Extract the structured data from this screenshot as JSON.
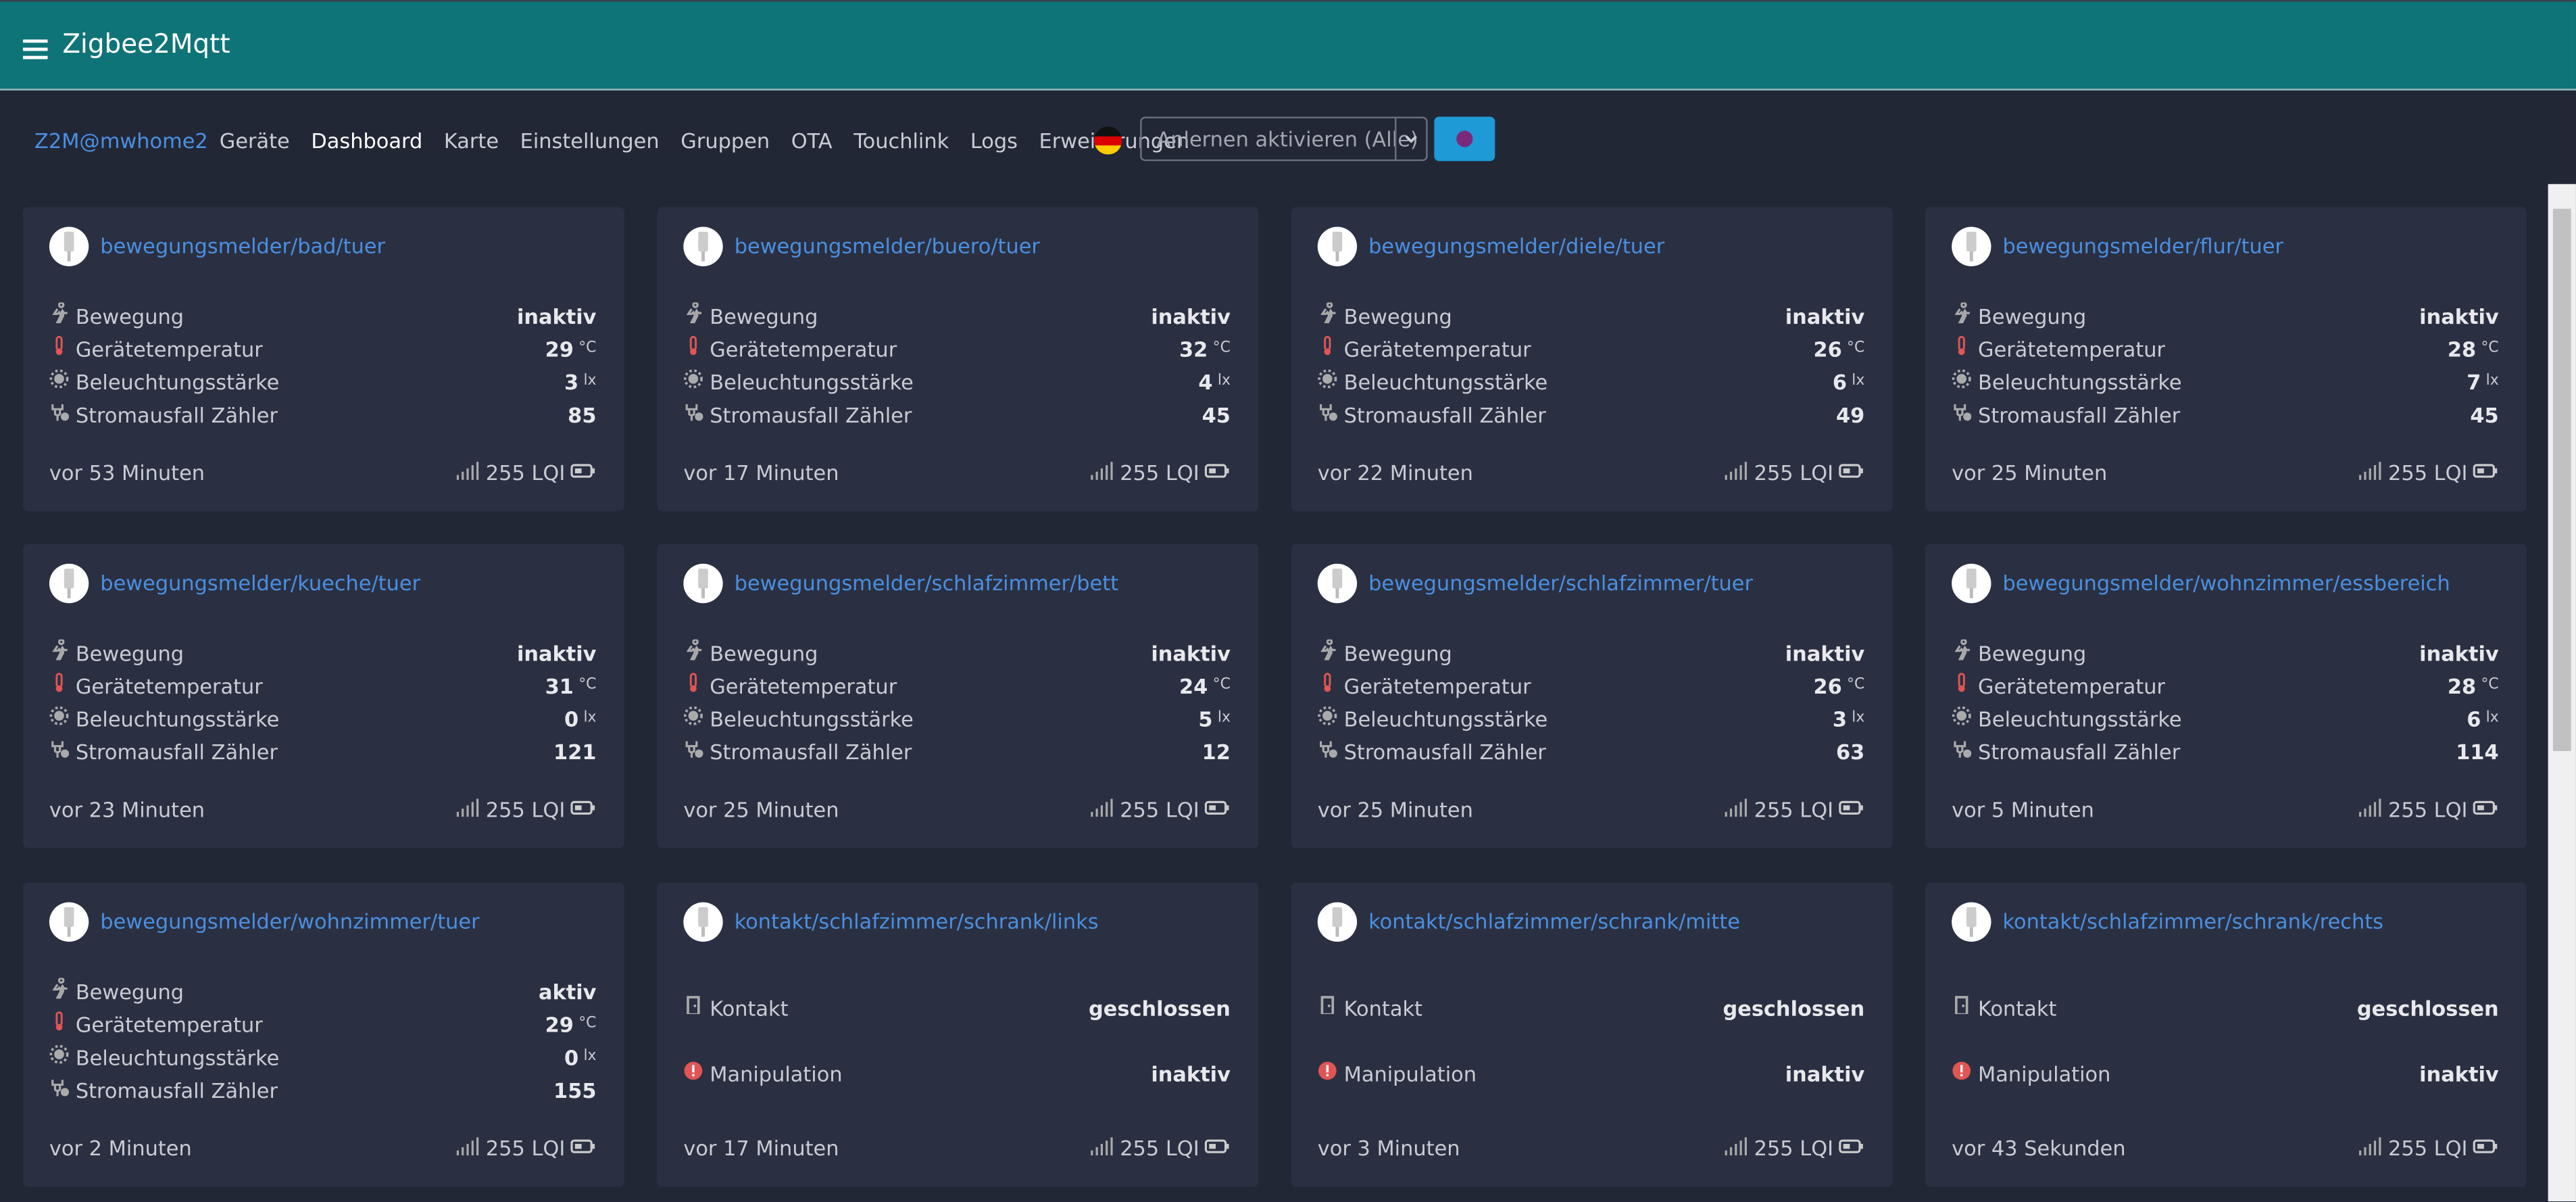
{
  "header": {
    "title": "Zigbee2Mqtt"
  },
  "nav": {
    "instance": "Z2M@mwhome2",
    "items": [
      "Geräte",
      "Dashboard",
      "Karte",
      "Einstellungen",
      "Gruppen",
      "OTA",
      "Touchlink",
      "Logs",
      "Erweiterungen"
    ],
    "permit_join": "Anlernen aktivieren (Alle)"
  },
  "cards": [
    {
      "name": "bewegungsmelder/bad/tuer",
      "rows": [
        {
          "label": "Bewegung",
          "value": "inaktiv"
        },
        {
          "label": "Gerätetemperatur",
          "value": 29,
          "unit": "°C"
        },
        {
          "label": "Beleuchtungsstärke",
          "value": 3,
          "unit": "lx"
        },
        {
          "label": "Stromausfall Zähler",
          "value": 85
        }
      ],
      "last_seen": "vor 53 Minuten",
      "lqi": "255 LQI"
    },
    {
      "name": "bewegungsmelder/buero/tuer",
      "rows": [
        {
          "label": "Bewegung",
          "value": "inaktiv"
        },
        {
          "label": "Gerätetemperatur",
          "value": 32,
          "unit": "°C"
        },
        {
          "label": "Beleuchtungsstärke",
          "value": 4,
          "unit": "lx"
        },
        {
          "label": "Stromausfall Zähler",
          "value": 45
        }
      ],
      "last_seen": "vor 17 Minuten",
      "lqi": "255 LQI"
    },
    {
      "name": "bewegungsmelder/diele/tuer",
      "rows": [
        {
          "label": "Bewegung",
          "value": "inaktiv"
        },
        {
          "label": "Gerätetemperatur",
          "value": 26,
          "unit": "°C"
        },
        {
          "label": "Beleuchtungsstärke",
          "value": 6,
          "unit": "lx"
        },
        {
          "label": "Stromausfall Zähler",
          "value": 49
        }
      ],
      "last_seen": "vor 22 Minuten",
      "lqi": "255 LQI"
    },
    {
      "name": "bewegungsmelder/flur/tuer",
      "rows": [
        {
          "label": "Bewegung",
          "value": "inaktiv"
        },
        {
          "label": "Gerätetemperatur",
          "value": 28,
          "unit": "°C"
        },
        {
          "label": "Beleuchtungsstärke",
          "value": 7,
          "unit": "lx"
        },
        {
          "label": "Stromausfall Zähler",
          "value": 45
        }
      ],
      "last_seen": "vor 25 Minuten",
      "lqi": "255 LQI"
    },
    {
      "name": "bewegungsmelder/kueche/tuer",
      "rows": [
        {
          "label": "Bewegung",
          "value": "inaktiv"
        },
        {
          "label": "Gerätetemperatur",
          "value": 31,
          "unit": "°C"
        },
        {
          "label": "Beleuchtungsstärke",
          "value": 0,
          "unit": "lx"
        },
        {
          "label": "Stromausfall Zähler",
          "value": 121
        }
      ],
      "last_seen": "vor 23 Minuten",
      "lqi": "255 LQI"
    },
    {
      "name": "bewegungsmelder/schlafzimmer/bett",
      "rows": [
        {
          "label": "Bewegung",
          "value": "inaktiv"
        },
        {
          "label": "Gerätetemperatur",
          "value": 24,
          "unit": "°C"
        },
        {
          "label": "Beleuchtungsstärke",
          "value": 5,
          "unit": "lx"
        },
        {
          "label": "Stromausfall Zähler",
          "value": 12
        }
      ],
      "last_seen": "vor 25 Minuten",
      "lqi": "255 LQI"
    },
    {
      "name": "bewegungsmelder/schlafzimmer/tuer",
      "rows": [
        {
          "label": "Bewegung",
          "value": "inaktiv"
        },
        {
          "label": "Gerätetemperatur",
          "value": 26,
          "unit": "°C"
        },
        {
          "label": "Beleuchtungsstärke",
          "value": 3,
          "unit": "lx"
        },
        {
          "label": "Stromausfall Zähler",
          "value": 63
        }
      ],
      "last_seen": "vor 25 Minuten",
      "lqi": "255 LQI"
    },
    {
      "name": "bewegungsmelder/wohnzimmer/essbereich",
      "rows": [
        {
          "label": "Bewegung",
          "value": "inaktiv"
        },
        {
          "label": "Gerätetemperatur",
          "value": 28,
          "unit": "°C"
        },
        {
          "label": "Beleuchtungsstärke",
          "value": 6,
          "unit": "lx"
        },
        {
          "label": "Stromausfall Zähler",
          "value": 114
        }
      ],
      "last_seen": "vor 5 Minuten",
      "lqi": "255 LQI"
    },
    {
      "name": "bewegungsmelder/wohnzimmer/tuer",
      "rows": [
        {
          "label": "Bewegung",
          "value": "aktiv"
        },
        {
          "label": "Gerätetemperatur",
          "value": 29,
          "unit": "°C"
        },
        {
          "label": "Beleuchtungsstärke",
          "value": 0,
          "unit": "lx"
        },
        {
          "label": "Stromausfall Zähler",
          "value": 155
        }
      ],
      "last_seen": "vor 2 Minuten",
      "lqi": "255 LQI"
    },
    {
      "name": "kontakt/schlafzimmer/schrank/links",
      "rows": [
        {
          "label": "Kontakt",
          "value": "geschlossen"
        },
        {
          "label": "Manipulation",
          "value": "inaktiv"
        }
      ],
      "last_seen": "vor 17 Minuten",
      "lqi": "255 LQI"
    },
    {
      "name": "kontakt/schlafzimmer/schrank/mitte",
      "rows": [
        {
          "label": "Kontakt",
          "value": "geschlossen"
        },
        {
          "label": "Manipulation",
          "value": "inaktiv"
        }
      ],
      "last_seen": "vor 3 Minuten",
      "lqi": "255 LQI"
    },
    {
      "name": "kontakt/schlafzimmer/schrank/rechts",
      "rows": [
        {
          "label": "Kontakt",
          "value": "geschlossen"
        },
        {
          "label": "Manipulation",
          "value": "inaktiv"
        }
      ],
      "last_seen": "vor 43 Sekunden",
      "lqi": "255 LQI"
    }
  ]
}
